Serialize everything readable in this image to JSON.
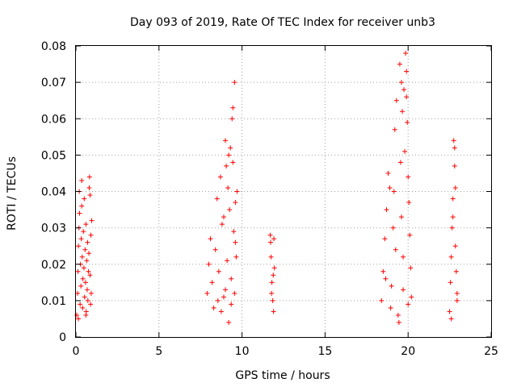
{
  "chart_data": {
    "type": "scatter",
    "title": "Day 093 of 2019, Rate Of TEC Index for receiver unb3",
    "xlabel": "GPS time / hours",
    "ylabel": "ROTI / TECUs",
    "xlim": [
      0,
      25
    ],
    "ylim": [
      0,
      0.08
    ],
    "xticks": [
      0,
      5,
      10,
      15,
      20,
      25
    ],
    "xtick_labels": [
      "0",
      "5",
      "10",
      "15",
      "20",
      "25"
    ],
    "yticks": [
      0,
      0.01,
      0.02,
      0.03,
      0.04,
      0.05,
      0.06,
      0.07,
      0.08
    ],
    "ytick_labels": [
      "0",
      "0.01",
      "0.02",
      "0.03",
      "0.04",
      "0.05",
      "0.06",
      "0.07",
      "0.08"
    ],
    "grid": true,
    "marker": "+",
    "series": [
      {
        "name": "ROTI",
        "color": "#ff0000",
        "points": [
          [
            0.05,
            0.006
          ],
          [
            0.1,
            0.012
          ],
          [
            0.12,
            0.018
          ],
          [
            0.15,
            0.025
          ],
          [
            0.18,
            0.03
          ],
          [
            0.2,
            0.04
          ],
          [
            0.22,
            0.034
          ],
          [
            0.25,
            0.009
          ],
          [
            0.28,
            0.02
          ],
          [
            0.3,
            0.014
          ],
          [
            0.32,
            0.027
          ],
          [
            0.35,
            0.043
          ],
          [
            0.38,
            0.022
          ],
          [
            0.4,
            0.008
          ],
          [
            0.42,
            0.016
          ],
          [
            0.45,
            0.029
          ],
          [
            0.48,
            0.019
          ],
          [
            0.5,
            0.038
          ],
          [
            0.52,
            0.011
          ],
          [
            0.55,
            0.024
          ],
          [
            0.58,
            0.015
          ],
          [
            0.6,
            0.031
          ],
          [
            0.62,
            0.007
          ],
          [
            0.65,
            0.021
          ],
          [
            0.68,
            0.013
          ],
          [
            0.7,
            0.026
          ],
          [
            0.72,
            0.01
          ],
          [
            0.75,
            0.018
          ],
          [
            0.78,
            0.023
          ],
          [
            0.8,
            0.041
          ],
          [
            0.82,
            0.044
          ],
          [
            0.85,
            0.017
          ],
          [
            0.88,
            0.009
          ],
          [
            0.9,
            0.028
          ],
          [
            0.92,
            0.012
          ],
          [
            0.95,
            0.032
          ],
          [
            0.15,
            0.005
          ],
          [
            0.35,
            0.036
          ],
          [
            0.6,
            0.006
          ],
          [
            0.85,
            0.039
          ],
          [
            7.9,
            0.012
          ],
          [
            8.0,
            0.02
          ],
          [
            8.1,
            0.027
          ],
          [
            8.2,
            0.015
          ],
          [
            8.3,
            0.008
          ],
          [
            8.4,
            0.024
          ],
          [
            8.5,
            0.038
          ],
          [
            8.6,
            0.018
          ],
          [
            8.7,
            0.044
          ],
          [
            8.8,
            0.031
          ],
          [
            8.9,
            0.011
          ],
          [
            9.0,
            0.054
          ],
          [
            9.05,
            0.047
          ],
          [
            9.1,
            0.021
          ],
          [
            9.15,
            0.041
          ],
          [
            9.2,
            0.004
          ],
          [
            9.25,
            0.035
          ],
          [
            9.3,
            0.052
          ],
          [
            9.35,
            0.016
          ],
          [
            9.4,
            0.06
          ],
          [
            9.45,
            0.063
          ],
          [
            9.5,
            0.029
          ],
          [
            9.55,
            0.07
          ],
          [
            9.6,
            0.026
          ],
          [
            9.65,
            0.022
          ],
          [
            9.7,
            0.04
          ],
          [
            8.55,
            0.01
          ],
          [
            8.75,
            0.007
          ],
          [
            9.0,
            0.013
          ],
          [
            9.35,
            0.009
          ],
          [
            9.55,
            0.012
          ],
          [
            9.45,
            0.048
          ],
          [
            8.9,
            0.033
          ],
          [
            9.2,
            0.05
          ],
          [
            9.6,
            0.037
          ],
          [
            11.7,
            0.028
          ],
          [
            11.75,
            0.022
          ],
          [
            11.8,
            0.015
          ],
          [
            11.85,
            0.01
          ],
          [
            11.9,
            0.007
          ],
          [
            11.95,
            0.019
          ],
          [
            11.72,
            0.026
          ],
          [
            11.78,
            0.012
          ],
          [
            11.88,
            0.017
          ],
          [
            11.92,
            0.027
          ],
          [
            18.4,
            0.01
          ],
          [
            18.5,
            0.018
          ],
          [
            18.6,
            0.027
          ],
          [
            18.7,
            0.035
          ],
          [
            18.8,
            0.045
          ],
          [
            18.9,
            0.041
          ],
          [
            19.0,
            0.014
          ],
          [
            19.1,
            0.03
          ],
          [
            19.2,
            0.057
          ],
          [
            19.3,
            0.065
          ],
          [
            19.4,
            0.006
          ],
          [
            19.5,
            0.075
          ],
          [
            19.55,
            0.048
          ],
          [
            19.6,
            0.033
          ],
          [
            19.65,
            0.062
          ],
          [
            19.7,
            0.022
          ],
          [
            19.75,
            0.068
          ],
          [
            19.8,
            0.051
          ],
          [
            19.85,
            0.078
          ],
          [
            19.9,
            0.073
          ],
          [
            19.95,
            0.059
          ],
          [
            20.0,
            0.044
          ],
          [
            20.05,
            0.037
          ],
          [
            20.1,
            0.028
          ],
          [
            20.15,
            0.019
          ],
          [
            20.2,
            0.011
          ],
          [
            18.65,
            0.016
          ],
          [
            18.95,
            0.008
          ],
          [
            19.25,
            0.024
          ],
          [
            19.45,
            0.004
          ],
          [
            19.7,
            0.013
          ],
          [
            20.0,
            0.009
          ],
          [
            19.15,
            0.04
          ],
          [
            19.6,
            0.07
          ],
          [
            19.9,
            0.066
          ],
          [
            22.5,
            0.007
          ],
          [
            22.55,
            0.015
          ],
          [
            22.6,
            0.022
          ],
          [
            22.65,
            0.03
          ],
          [
            22.7,
            0.038
          ],
          [
            22.75,
            0.054
          ],
          [
            22.8,
            0.047
          ],
          [
            22.85,
            0.041
          ],
          [
            22.9,
            0.018
          ],
          [
            22.95,
            0.01
          ],
          [
            22.6,
            0.005
          ],
          [
            22.7,
            0.033
          ],
          [
            22.85,
            0.025
          ],
          [
            22.95,
            0.012
          ],
          [
            22.8,
            0.052
          ]
        ]
      }
    ]
  }
}
